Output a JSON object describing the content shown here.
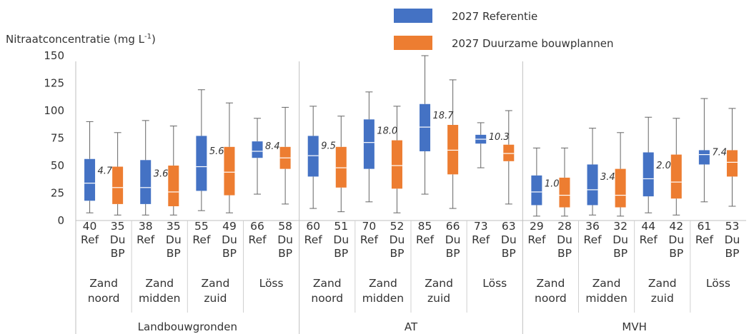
{
  "chart_data": {
    "type": "box",
    "ylabel": "Nitraatconcentratie (mg L",
    "ylabel_sup": "-1",
    "ylabel_tail": ")",
    "ylim": [
      0,
      150
    ],
    "yticks": [
      0,
      25,
      50,
      75,
      100,
      125,
      150
    ],
    "legend": [
      {
        "name": "2027 Referentie",
        "color": "#4472C4"
      },
      {
        "name": "2027 Duurzame bouwplannen",
        "color": "#ED7D31"
      }
    ],
    "groups": [
      {
        "name": "Landbouwgronden",
        "regions": [
          {
            "name": [
              "Zand",
              "noord"
            ],
            "annotation": "4.7",
            "boxes": [
              {
                "series": 0,
                "count": "40",
                "label": [
                  "Ref"
                ],
                "whisker_low": 7,
                "q1": 18,
                "median": 34,
                "q3": 56,
                "whisker_high": 90
              },
              {
                "series": 1,
                "count": "35",
                "label": [
                  "Du",
                  "BP"
                ],
                "whisker_low": 5,
                "q1": 15,
                "median": 30,
                "q3": 49,
                "whisker_high": 80
              }
            ]
          },
          {
            "name": [
              "Zand",
              "midden"
            ],
            "annotation": "3.6",
            "boxes": [
              {
                "series": 0,
                "count": "38",
                "label": [
                  "Ref"
                ],
                "whisker_low": 5,
                "q1": 15,
                "median": 30,
                "q3": 55,
                "whisker_high": 91
              },
              {
                "series": 1,
                "count": "35",
                "label": [
                  "Du",
                  "BP"
                ],
                "whisker_low": 5,
                "q1": 13,
                "median": 26,
                "q3": 50,
                "whisker_high": 86
              }
            ]
          },
          {
            "name": [
              "Zand",
              "zuid"
            ],
            "annotation": "5.6",
            "boxes": [
              {
                "series": 0,
                "count": "55",
                "label": [
                  "Ref"
                ],
                "whisker_low": 9,
                "q1": 27,
                "median": 49,
                "q3": 77,
                "whisker_high": 119
              },
              {
                "series": 1,
                "count": "49",
                "label": [
                  "Du",
                  "BP"
                ],
                "whisker_low": 7,
                "q1": 23,
                "median": 44,
                "q3": 67,
                "whisker_high": 107
              }
            ]
          },
          {
            "name": [
              "Löss"
            ],
            "annotation": "8.4",
            "boxes": [
              {
                "series": 0,
                "count": "66",
                "label": [
                  "Ref"
                ],
                "whisker_low": 24,
                "q1": 57,
                "median": 63,
                "q3": 72,
                "whisker_high": 93
              },
              {
                "series": 1,
                "count": "58",
                "label": [
                  "Du",
                  "BP"
                ],
                "whisker_low": 15,
                "q1": 47,
                "median": 57,
                "q3": 67,
                "whisker_high": 103
              }
            ]
          }
        ]
      },
      {
        "name": "AT",
        "regions": [
          {
            "name": [
              "Zand",
              "noord"
            ],
            "annotation": "9.5",
            "boxes": [
              {
                "series": 0,
                "count": "60",
                "label": [
                  "Ref"
                ],
                "whisker_low": 11,
                "q1": 40,
                "median": 59,
                "q3": 77,
                "whisker_high": 104
              },
              {
                "series": 1,
                "count": "51",
                "label": [
                  "Du",
                  "BP"
                ],
                "whisker_low": 8,
                "q1": 30,
                "median": 48,
                "q3": 67,
                "whisker_high": 95
              }
            ]
          },
          {
            "name": [
              "Zand",
              "midden"
            ],
            "annotation": "18.0",
            "boxes": [
              {
                "series": 0,
                "count": "70",
                "label": [
                  "Ref"
                ],
                "whisker_low": 17,
                "q1": 47,
                "median": 71,
                "q3": 92,
                "whisker_high": 117
              },
              {
                "series": 1,
                "count": "52",
                "label": [
                  "Du",
                  "BP"
                ],
                "whisker_low": 7,
                "q1": 29,
                "median": 50,
                "q3": 73,
                "whisker_high": 104
              }
            ]
          },
          {
            "name": [
              "Zand",
              "zuid"
            ],
            "annotation": "18.7",
            "boxes": [
              {
                "series": 0,
                "count": "85",
                "label": [
                  "Ref"
                ],
                "whisker_low": 24,
                "q1": 63,
                "median": 85,
                "q3": 106,
                "whisker_high": 150
              },
              {
                "series": 1,
                "count": "66",
                "label": [
                  "Du",
                  "BP"
                ],
                "whisker_low": 11,
                "q1": 42,
                "median": 64,
                "q3": 87,
                "whisker_high": 128
              }
            ]
          },
          {
            "name": [
              "Löss"
            ],
            "annotation": "10.3",
            "boxes": [
              {
                "series": 0,
                "count": "73",
                "label": [
                  "Ref"
                ],
                "whisker_low": 48,
                "q1": 70,
                "median": 74,
                "q3": 78,
                "whisker_high": 89
              },
              {
                "series": 1,
                "count": "63",
                "label": [
                  "Du",
                  "BP"
                ],
                "whisker_low": 15,
                "q1": 54,
                "median": 61,
                "q3": 69,
                "whisker_high": 100
              }
            ]
          }
        ]
      },
      {
        "name": "MVH",
        "regions": [
          {
            "name": [
              "Zand",
              "noord"
            ],
            "annotation": "1.0",
            "boxes": [
              {
                "series": 0,
                "count": "29",
                "label": [
                  "Ref"
                ],
                "whisker_low": 4,
                "q1": 14,
                "median": 26,
                "q3": 41,
                "whisker_high": 66
              },
              {
                "series": 1,
                "count": "28",
                "label": [
                  "Du",
                  "BP"
                ],
                "whisker_low": 4,
                "q1": 12,
                "median": 23,
                "q3": 39,
                "whisker_high": 66
              }
            ]
          },
          {
            "name": [
              "Zand",
              "midden"
            ],
            "annotation": "3.4",
            "boxes": [
              {
                "series": 0,
                "count": "36",
                "label": [
                  "Ref"
                ],
                "whisker_low": 5,
                "q1": 14,
                "median": 28,
                "q3": 51,
                "whisker_high": 84
              },
              {
                "series": 1,
                "count": "32",
                "label": [
                  "Du",
                  "BP"
                ],
                "whisker_low": 4,
                "q1": 12,
                "median": 23,
                "q3": 47,
                "whisker_high": 80
              }
            ]
          },
          {
            "name": [
              "Zand",
              "zuid"
            ],
            "annotation": "2.0",
            "boxes": [
              {
                "series": 0,
                "count": "44",
                "label": [
                  "Ref"
                ],
                "whisker_low": 7,
                "q1": 22,
                "median": 38,
                "q3": 62,
                "whisker_high": 94
              },
              {
                "series": 1,
                "count": "42",
                "label": [
                  "Du",
                  "BP"
                ],
                "whisker_low": 5,
                "q1": 20,
                "median": 35,
                "q3": 60,
                "whisker_high": 93
              }
            ]
          },
          {
            "name": [
              "Löss"
            ],
            "annotation": "7.4",
            "boxes": [
              {
                "series": 0,
                "count": "61",
                "label": [
                  "Ref"
                ],
                "whisker_low": 17,
                "q1": 51,
                "median": 60,
                "q3": 64,
                "whisker_high": 111
              },
              {
                "series": 1,
                "count": "53",
                "label": [
                  "Du",
                  "BP"
                ],
                "whisker_low": 13,
                "q1": 40,
                "median": 53,
                "q3": 64,
                "whisker_high": 102
              }
            ]
          }
        ]
      }
    ]
  }
}
